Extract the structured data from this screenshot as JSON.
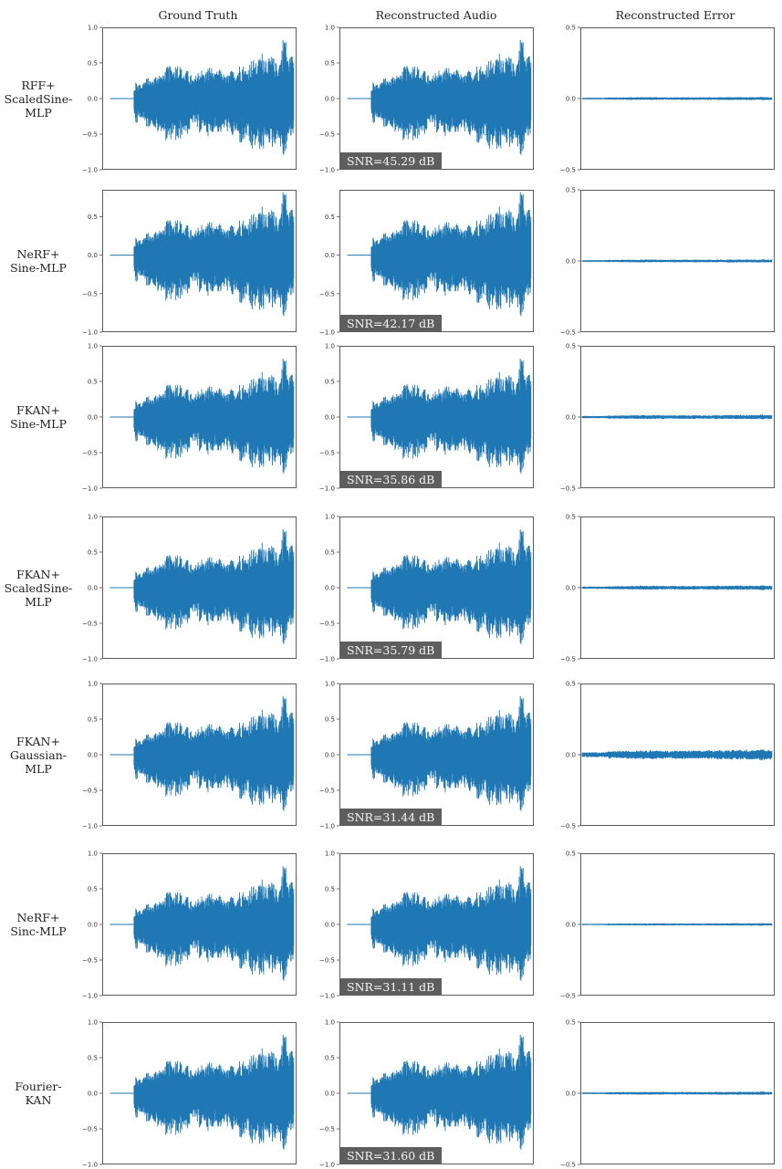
{
  "columns": [
    "Ground Truth",
    "Reconstructed Audio",
    "Reconstructed Error"
  ],
  "rows": [
    {
      "label": [
        "RFF+",
        "ScaledSine-",
        "MLP"
      ],
      "snr": "SNR=45.29 dB"
    },
    {
      "label": [
        "NeRF+",
        "Sine-MLP"
      ],
      "snr": "SNR=42.17 dB"
    },
    {
      "label": [
        "FKAN+",
        "Sine-MLP"
      ],
      "snr": "SNR=35.86 dB"
    },
    {
      "label": [
        "FKAN+",
        "ScaledSine-",
        "MLP"
      ],
      "snr": "SNR=35.79 dB"
    },
    {
      "label": [
        "FKAN+",
        "Gaussian-",
        "MLP"
      ],
      "snr": "SNR=31.44 dB"
    },
    {
      "label": [
        "NeRF+",
        "Sinc-MLP"
      ],
      "snr": "SNR=31.11 dB"
    },
    {
      "label": [
        "Fourier-",
        "KAN"
      ],
      "snr": "SNR=31.60 dB"
    }
  ],
  "chart_data": {
    "type": "line",
    "layout": "grid 7 rows x 3 columns of waveform plots",
    "series_color": "#1f77b4",
    "audio_panels": {
      "ylim": [
        -1.0,
        1.0
      ],
      "yticks": [
        "1.0",
        "0.5",
        "0.0",
        "−0.5",
        "−1.0"
      ],
      "ytick_values": [
        1.0,
        0.5,
        0.0,
        -0.5,
        -1.0
      ],
      "row2_ylim": [
        -1.0,
        0.85
      ],
      "row2_yticks": [
        "0.5",
        "0.0",
        "−0.5",
        "−1.0"
      ],
      "row2_ytick_values": [
        0.5,
        0.0,
        -0.5,
        -1.0
      ],
      "envelope": {
        "note": "approximate peak amplitude of the waveform over normalized time",
        "t": [
          0.0,
          0.03,
          0.05,
          0.12,
          0.14,
          0.16,
          0.2,
          0.25,
          0.3,
          0.35,
          0.4,
          0.45,
          0.5,
          0.55,
          0.6,
          0.65,
          0.7,
          0.75,
          0.8,
          0.85,
          0.9,
          0.93,
          0.95,
          0.97,
          1.0
        ],
        "pos": [
          0.0,
          0.0,
          0.0,
          0.0,
          0.22,
          0.22,
          0.28,
          0.33,
          0.42,
          0.52,
          0.45,
          0.32,
          0.43,
          0.45,
          0.4,
          0.36,
          0.48,
          0.5,
          0.6,
          0.68,
          0.55,
          0.62,
          1.0,
          0.7,
          0.6
        ],
        "neg": [
          0.0,
          0.0,
          0.0,
          0.0,
          -0.38,
          -0.3,
          -0.4,
          -0.45,
          -0.6,
          -0.65,
          -0.58,
          -0.4,
          -0.5,
          -0.55,
          -0.48,
          -0.52,
          -0.62,
          -0.7,
          -0.78,
          -0.72,
          -0.68,
          -0.75,
          -0.88,
          -0.7,
          -0.5
        ]
      }
    },
    "error_panels": {
      "ylim": [
        -0.5,
        0.5
      ],
      "yticks": [
        "0.5",
        "0.0",
        "−0.5"
      ],
      "ytick_values": [
        0.5,
        0.0,
        -0.5
      ],
      "error_amplitude_per_row": [
        0.008,
        0.008,
        0.012,
        0.012,
        0.03,
        0.006,
        0.008
      ]
    }
  }
}
